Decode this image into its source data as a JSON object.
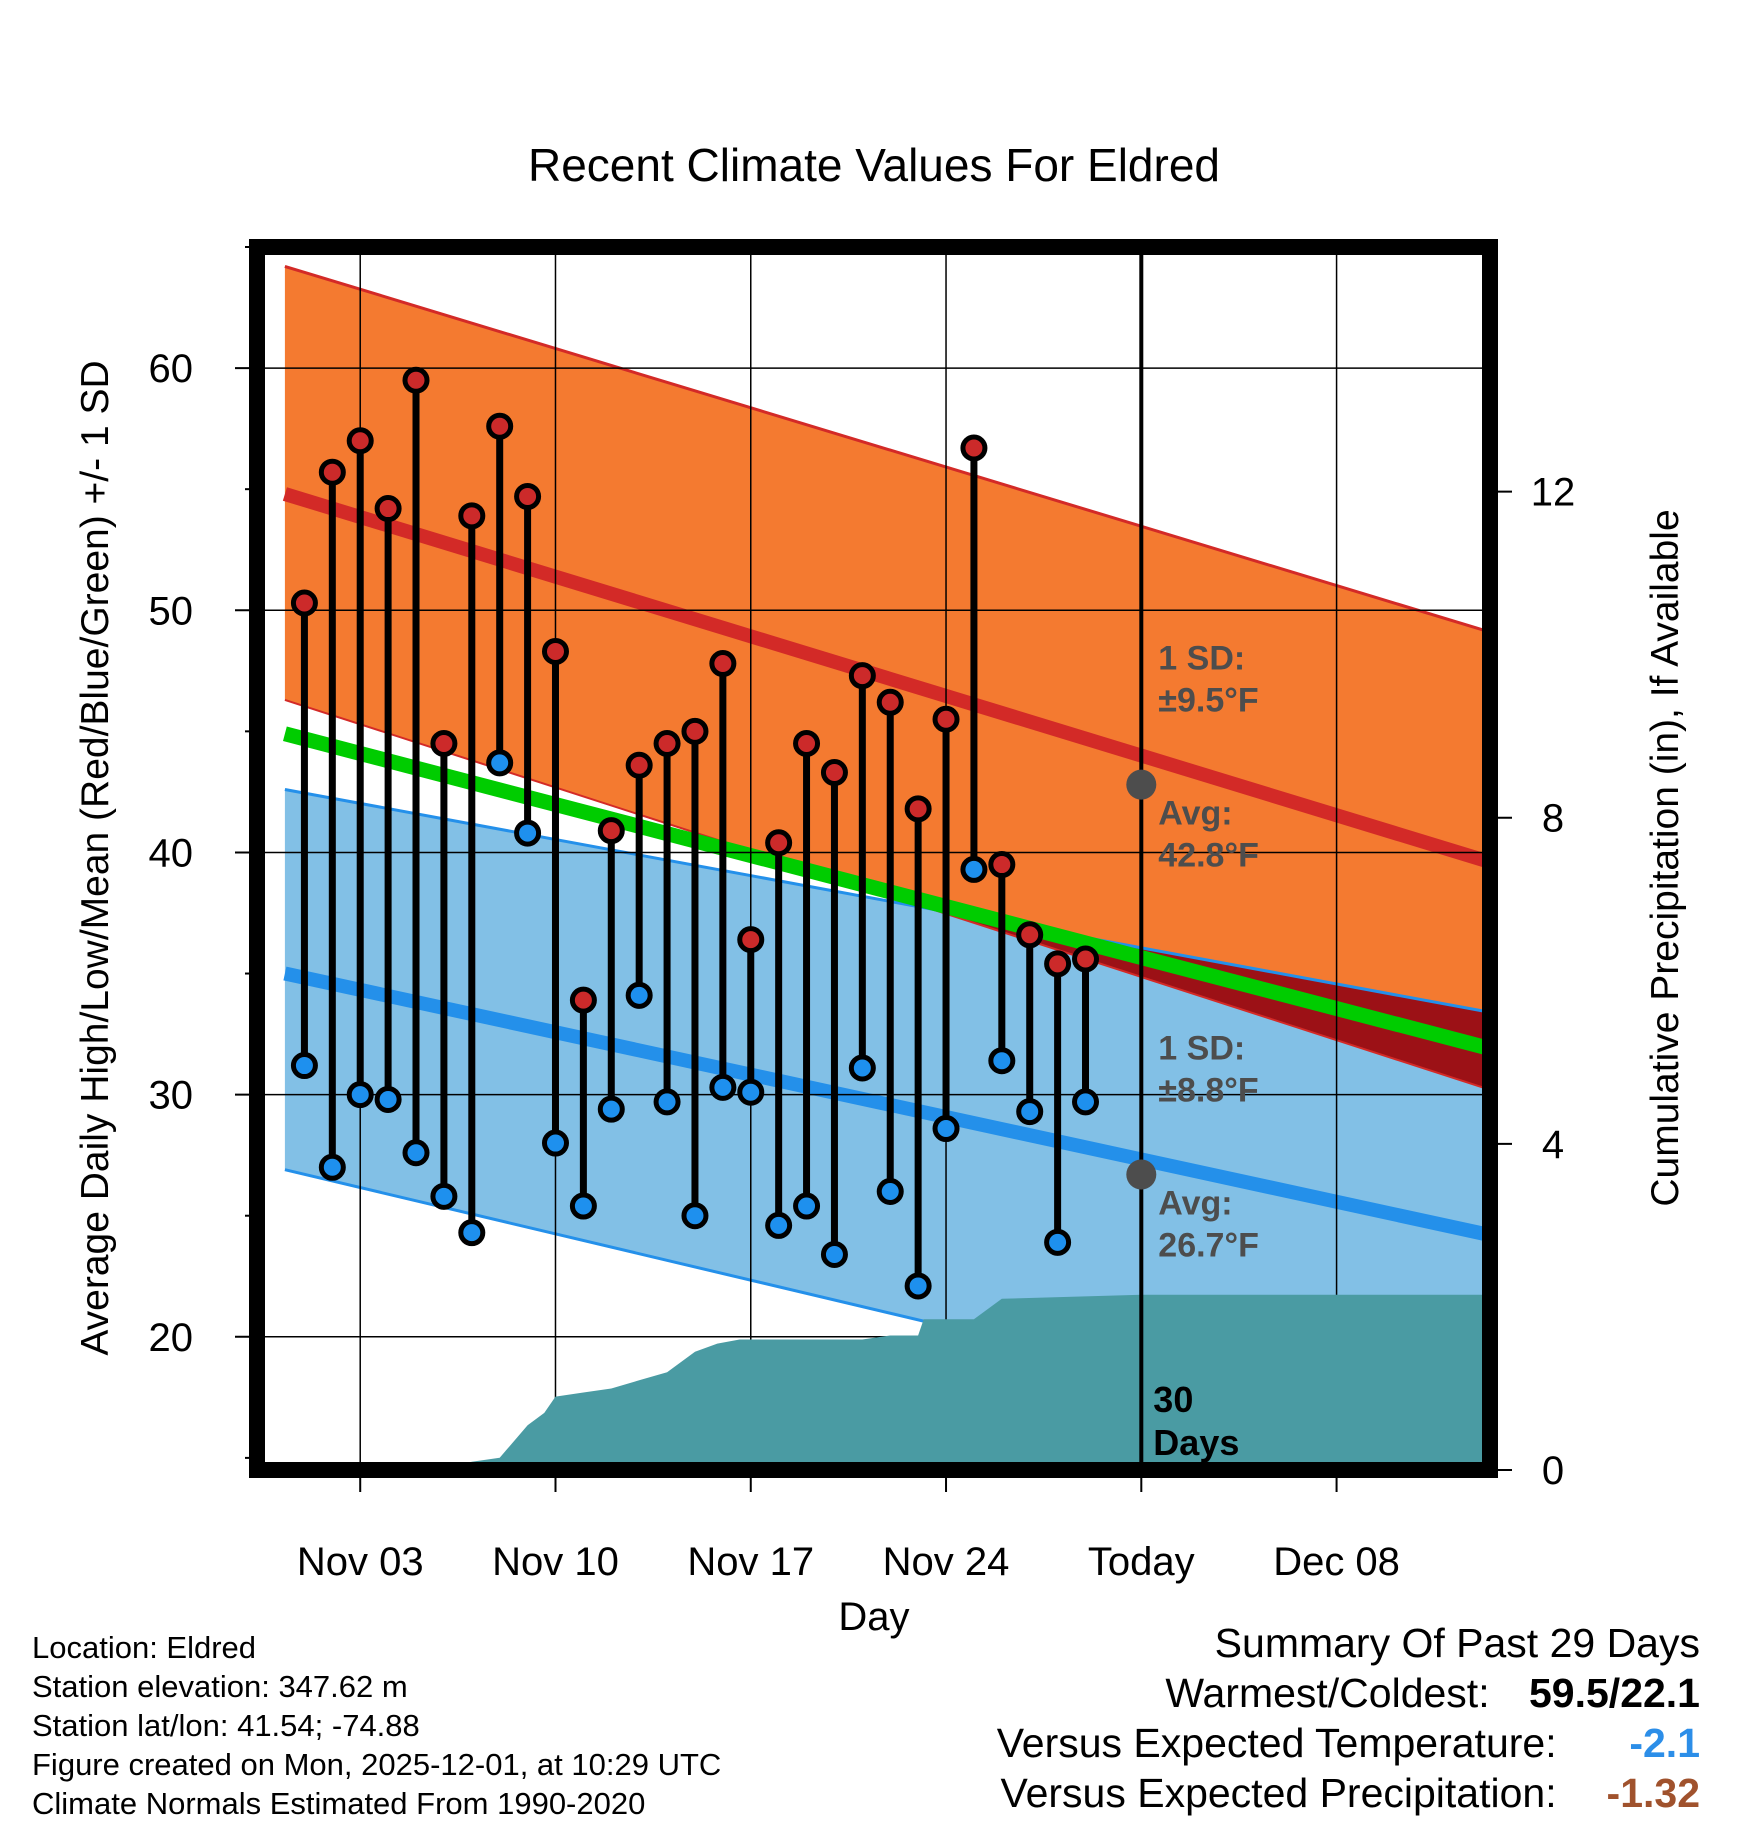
{
  "chart_data": {
    "type": "line",
    "title": "Recent Climate Values For Eldred",
    "xlabel": "Day",
    "ylabel": "Average Daily High/Low/Mean (Red/Blue/Green) +/- 1 SD",
    "y2label": "Cumulative Precipitation (in), If Available",
    "xlim": [
      -3.7,
      40.5
    ],
    "ylim": [
      14.5,
      65
    ],
    "y2lim": [
      0,
      15
    ],
    "x_tick_positions": [
      0,
      7,
      14,
      21,
      28,
      35
    ],
    "x_tick_labels": [
      "Nov 03",
      "Nov 10",
      "Nov 17",
      "Nov 24",
      "Today",
      "Dec 08"
    ],
    "y_ticks": [
      20,
      30,
      40,
      50,
      60
    ],
    "y2_ticks": [
      0,
      4,
      8,
      12
    ],
    "today_x": 28,
    "normal_high": {
      "x": [
        -2.7,
        40.5
      ],
      "mean": [
        54.8,
        39.6
      ],
      "upper": [
        64.2,
        49.1
      ],
      "lower": [
        46.3,
        30.2
      ]
    },
    "normal_low": {
      "x": [
        -2.7,
        40.5
      ],
      "mean": [
        35.0,
        24.2
      ],
      "upper": [
        42.6,
        33.4
      ],
      "lower": [
        26.9,
        15.1
      ]
    },
    "normal_mean": {
      "x": [
        -2.7,
        40.5
      ],
      "values": [
        44.9,
        31.9
      ]
    },
    "observed": {
      "x": [
        -2,
        -1,
        0,
        1,
        2,
        3,
        4,
        5,
        6,
        7,
        8,
        9,
        10,
        11,
        12,
        13,
        14,
        15,
        16,
        17,
        18,
        19,
        20,
        21,
        22,
        23,
        24,
        25,
        26
      ],
      "high": [
        50.3,
        55.7,
        57.0,
        54.2,
        59.5,
        44.5,
        53.9,
        57.6,
        54.7,
        48.3,
        33.9,
        40.9,
        43.6,
        44.5,
        45.0,
        47.8,
        36.4,
        40.4,
        44.5,
        43.3,
        47.3,
        46.2,
        41.8,
        45.5,
        56.7,
        39.5,
        36.6,
        35.4,
        35.6
      ],
      "low": [
        31.2,
        27.0,
        30.0,
        29.8,
        27.6,
        25.8,
        24.3,
        43.7,
        40.8,
        28.0,
        25.4,
        29.4,
        34.1,
        29.7,
        25.0,
        30.3,
        30.1,
        24.6,
        25.4,
        23.4,
        31.1,
        26.0,
        22.1,
        28.6,
        39.3,
        31.4,
        29.3,
        23.9,
        29.7
      ]
    },
    "precipitation": {
      "x": [
        2.5,
        3.5,
        4.0,
        5.0,
        6.0,
        6.6,
        7.0,
        8.0,
        9.0,
        10.0,
        11.0,
        12.0,
        12.8,
        13.6,
        18.0,
        19.0,
        20.0,
        20.2,
        21.0,
        22.0,
        23.0,
        28.0,
        40.5
      ],
      "values": [
        0.0,
        0.05,
        0.1,
        0.15,
        0.55,
        0.7,
        0.9,
        0.95,
        1.0,
        1.1,
        1.2,
        1.45,
        1.55,
        1.6,
        1.6,
        1.65,
        1.65,
        1.85,
        1.85,
        1.85,
        2.1,
        2.15,
        2.15
      ]
    },
    "annotations": [
      {
        "series": "high",
        "x": 28,
        "y": 42.8,
        "sd_label": "1 SD:",
        "sd_value": "±9.5°F",
        "avg_label": "Avg:",
        "avg_value": "42.8°F"
      },
      {
        "series": "low",
        "x": 28,
        "y": 26.7,
        "sd_label": "1 SD:",
        "sd_value": "±8.8°F",
        "avg_label": "Avg:",
        "avg_value": "26.7°F"
      }
    ],
    "period_label": [
      "30",
      "Days"
    ],
    "colors": {
      "high_band": "#f47a30",
      "high_line": "#d32a27",
      "low_band": "#82c0e6",
      "low_line": "#2490ea",
      "mean_line": "#00cc00",
      "overlap": "#9c1116",
      "precip": "#4a9ba3",
      "high_dot": "#cc2a2a",
      "low_dot": "#1e90ee",
      "annotation": "#4d4d4d"
    }
  },
  "metadata": {
    "location": "Location: Eldred",
    "elevation": "Station elevation: 347.62 m",
    "latlon": "Station lat/lon: 41.54; -74.88",
    "created": "Figure created on Mon, 2025-12-01, at 10:29 UTC",
    "normals": "Climate Normals Estimated From 1990-2020"
  },
  "summary": {
    "heading": "Summary Of Past 29 Days",
    "warmest_coldest_label": "Warmest/Coldest:",
    "warmest_coldest_value": "59.5/22.1",
    "temp_label": "Versus Expected Temperature:",
    "temp_value": "-2.1",
    "temp_color": "#2c8ee8",
    "precip_label": "Versus Expected Precipitation:",
    "precip_value": "-1.32",
    "precip_color": "#a0522d"
  }
}
